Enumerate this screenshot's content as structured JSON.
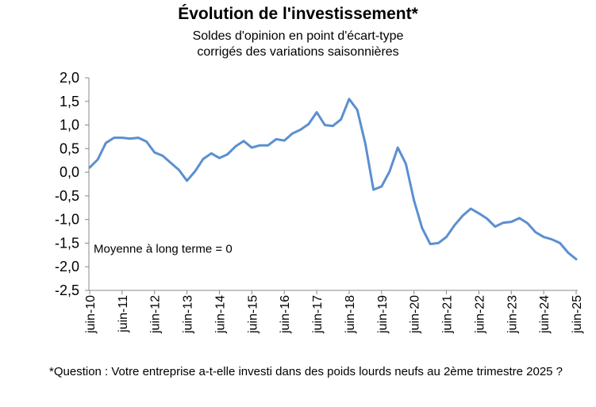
{
  "chart_data": {
    "type": "line",
    "title": "Évolution de l'investissement*",
    "subtitle_lines": [
      "Soldes d'opinion en point d'écart-type",
      "corrigés des variations saisonnières"
    ],
    "annotation": "Moyenne à long terme = 0",
    "footnote": "*Question : Votre entreprise a-t-elle investi dans des poids lourds neufs au 2ème trimestre 2025 ?",
    "ylim": [
      -2.5,
      2.0
    ],
    "y_ticks": [
      "2,0",
      "1,5",
      "1,0",
      "0,5",
      "0,0",
      "-0,5",
      "-1,0",
      "-1,5",
      "-2,0",
      "-2,5"
    ],
    "x_ticks": [
      "juin-10",
      "juin-11",
      "juin-12",
      "juin-13",
      "juin-14",
      "juin-15",
      "juin-16",
      "juin-17",
      "juin-18",
      "juin-19",
      "juin-20",
      "juin-21",
      "juin-22",
      "juin-23",
      "juin-24",
      "juin-25"
    ],
    "grid": false,
    "line_color": "#5b8fd0",
    "series": [
      {
        "x": [
          "2010-06",
          "2010-09",
          "2010-12",
          "2011-03",
          "2011-06",
          "2011-09",
          "2011-12",
          "2012-03",
          "2012-06",
          "2012-09",
          "2012-12",
          "2013-03",
          "2013-06",
          "2013-09",
          "2013-12",
          "2014-03",
          "2014-06",
          "2014-09",
          "2014-12",
          "2015-03",
          "2015-06",
          "2015-09",
          "2015-12",
          "2016-03",
          "2016-06",
          "2016-09",
          "2016-12",
          "2017-03",
          "2017-06",
          "2017-09",
          "2017-12",
          "2018-03",
          "2018-06",
          "2018-09",
          "2018-12",
          "2019-03",
          "2019-06",
          "2019-09",
          "2019-12",
          "2020-03",
          "2020-06",
          "2020-09",
          "2020-12",
          "2021-03",
          "2021-06",
          "2021-09",
          "2021-12",
          "2022-03",
          "2022-06",
          "2022-09",
          "2022-12",
          "2023-03",
          "2023-06",
          "2023-09",
          "2023-12",
          "2024-03",
          "2024-06",
          "2024-09",
          "2024-12",
          "2025-03",
          "2025-06"
        ],
        "y": [
          0.1,
          0.27,
          0.62,
          0.73,
          0.73,
          0.71,
          0.73,
          0.65,
          0.42,
          0.35,
          0.2,
          0.05,
          -0.18,
          0.02,
          0.28,
          0.4,
          0.3,
          0.38,
          0.55,
          0.66,
          0.52,
          0.57,
          0.57,
          0.7,
          0.67,
          0.82,
          0.9,
          1.02,
          1.27,
          1.0,
          0.98,
          1.12,
          1.55,
          1.32,
          0.6,
          -0.37,
          -0.3,
          0.02,
          0.52,
          0.18,
          -0.6,
          -1.18,
          -1.52,
          -1.5,
          -1.37,
          -1.12,
          -0.92,
          -0.77,
          -0.87,
          -0.98,
          -1.15,
          -1.07,
          -1.05,
          -0.97,
          -1.08,
          -1.27,
          -1.37,
          -1.42,
          -1.5,
          -1.7,
          -1.84
        ]
      }
    ]
  }
}
